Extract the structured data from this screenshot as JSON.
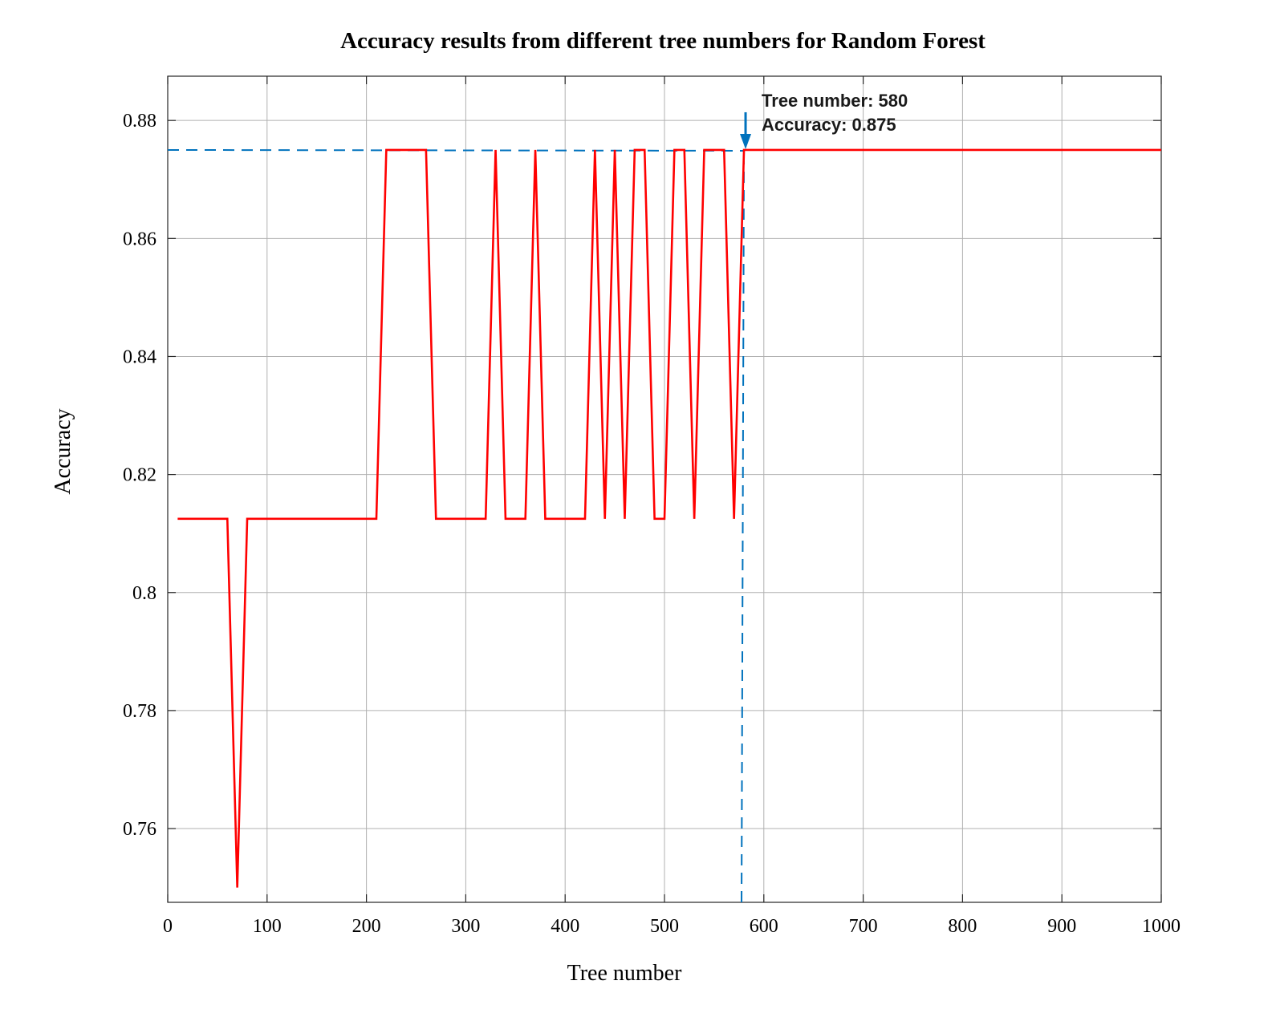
{
  "chart_data": {
    "type": "line",
    "title": "Accuracy results from different tree numbers for Random Forest",
    "xlabel": "Tree number",
    "ylabel": "Accuracy",
    "xlim": [
      0,
      1000
    ],
    "ylim": [
      0.7475,
      0.8875
    ],
    "xticks": [
      0,
      100,
      200,
      300,
      400,
      500,
      600,
      700,
      800,
      900,
      1000
    ],
    "xtick_labels": [
      "0",
      "100",
      "200",
      "300",
      "400",
      "500",
      "600",
      "700",
      "800",
      "900",
      "1000"
    ],
    "yticks": [
      0.76,
      0.78,
      0.8,
      0.82,
      0.84,
      0.86,
      0.88
    ],
    "ytick_labels": [
      "0.76",
      "0.78",
      "0.8",
      "0.82",
      "0.84",
      "0.86",
      "0.88"
    ],
    "grid": true,
    "colors": {
      "line": "#ff0000",
      "marker": "#0072bd"
    },
    "series": [
      {
        "x": [
          10,
          20,
          30,
          40,
          50,
          60,
          70,
          80,
          90,
          100,
          110,
          120,
          130,
          140,
          150,
          160,
          170,
          180,
          190,
          200,
          210,
          220,
          230,
          240,
          250,
          260,
          270,
          280,
          290,
          300,
          310,
          320,
          330,
          340,
          350,
          360,
          370,
          380,
          390,
          400,
          410,
          420,
          430,
          440,
          450,
          460,
          470,
          480,
          490,
          500,
          510,
          520,
          530,
          540,
          550,
          560,
          570,
          580,
          590,
          600,
          610,
          620,
          630,
          640,
          650,
          660,
          670,
          680,
          690,
          700,
          710,
          720,
          730,
          740,
          750,
          760,
          770,
          780,
          790,
          800,
          810,
          820,
          830,
          840,
          850,
          860,
          870,
          880,
          890,
          900,
          910,
          920,
          930,
          940,
          950,
          960,
          970,
          980,
          990,
          1000
        ],
        "y": [
          0.8125,
          0.8125,
          0.8125,
          0.8125,
          0.8125,
          0.8125,
          0.75,
          0.8125,
          0.8125,
          0.8125,
          0.8125,
          0.8125,
          0.8125,
          0.8125,
          0.8125,
          0.8125,
          0.8125,
          0.8125,
          0.8125,
          0.8125,
          0.8125,
          0.875,
          0.875,
          0.875,
          0.875,
          0.875,
          0.8125,
          0.8125,
          0.8125,
          0.8125,
          0.8125,
          0.8125,
          0.875,
          0.8125,
          0.8125,
          0.8125,
          0.875,
          0.8125,
          0.8125,
          0.8125,
          0.8125,
          0.8125,
          0.875,
          0.8125,
          0.875,
          0.8125,
          0.875,
          0.875,
          0.8125,
          0.8125,
          0.875,
          0.875,
          0.8125,
          0.875,
          0.875,
          0.875,
          0.8125,
          0.875,
          0.875,
          0.875,
          0.875,
          0.875,
          0.875,
          0.875,
          0.875,
          0.875,
          0.875,
          0.875,
          0.875,
          0.875,
          0.875,
          0.875,
          0.875,
          0.875,
          0.875,
          0.875,
          0.875,
          0.875,
          0.875,
          0.875,
          0.875,
          0.875,
          0.875,
          0.875,
          0.875,
          0.875,
          0.875,
          0.875,
          0.875,
          0.875,
          0.875,
          0.875,
          0.875,
          0.875,
          0.875,
          0.875,
          0.875,
          0.875,
          0.875,
          0.875
        ]
      }
    ],
    "annotation": {
      "x": 580,
      "y": 0.875,
      "lines": [
        "Tree number: 580",
        "Accuracy: 0.875"
      ]
    }
  }
}
